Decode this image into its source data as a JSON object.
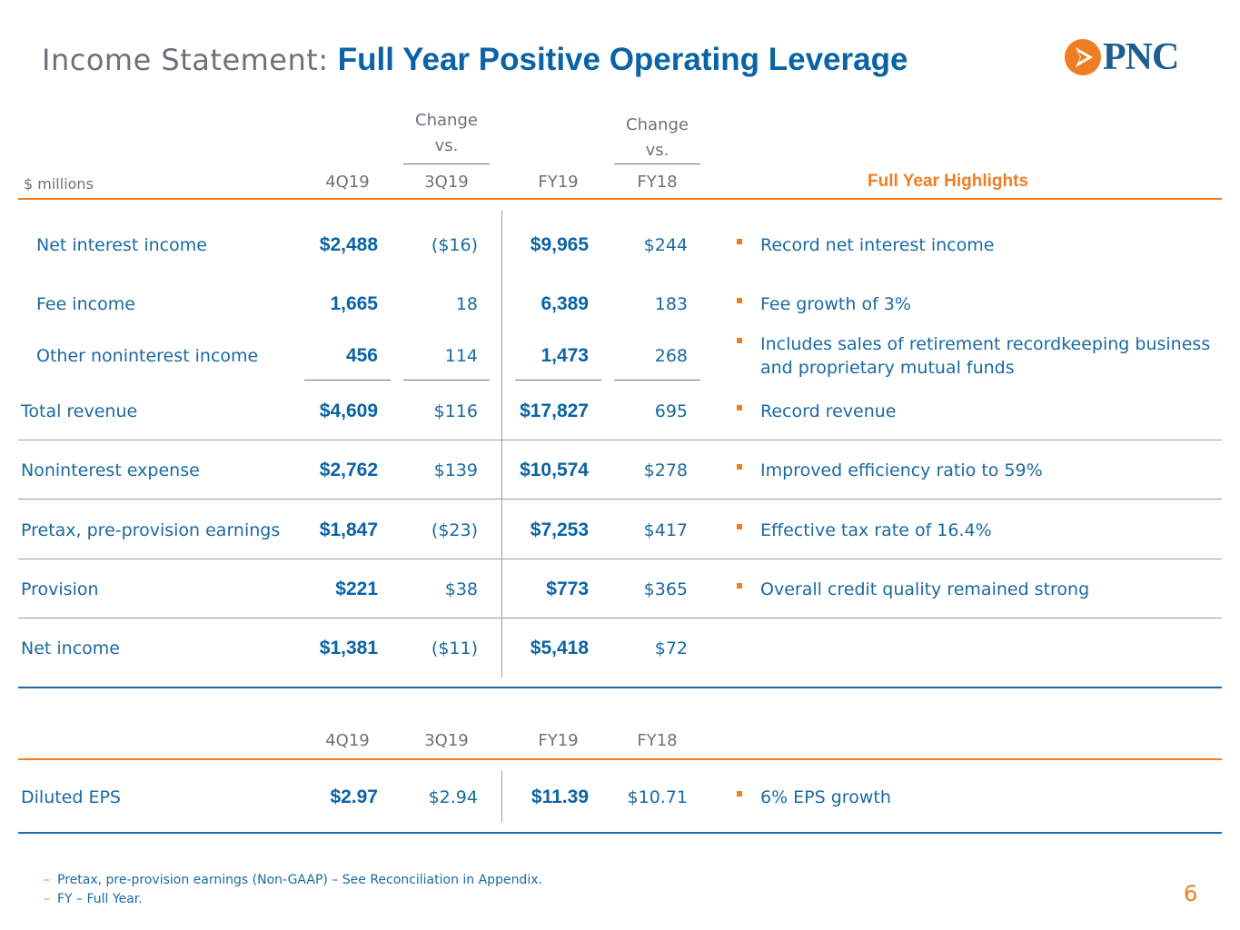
{
  "title": {
    "prefix": "Income Statement:",
    "main": "Full Year Positive Operating Leverage"
  },
  "logo": {
    "text": "PNC"
  },
  "header": {
    "units": "$ millions",
    "change_label_1": "Change",
    "vs_label_1": "vs.",
    "change_label_2": "Change",
    "vs_label_2": "vs.",
    "col_4q19": "4Q19",
    "col_3q19": "3Q19",
    "col_fy19": "FY19",
    "col_fy18": "FY18",
    "highlights": "Full Year Highlights"
  },
  "rows": [
    {
      "label": "Net interest income",
      "q4": "$2,488",
      "chg_q": "($16)",
      "fy": "$9,965",
      "chg_fy": "$244",
      "highlight": "Record net interest income"
    },
    {
      "label": "Fee income",
      "q4": "1,665",
      "chg_q": "18",
      "fy": "6,389",
      "chg_fy": "183",
      "highlight": "Fee growth of 3%"
    },
    {
      "label": "Other noninterest income",
      "q4": "456",
      "chg_q": "114",
      "fy": "1,473",
      "chg_fy": "268",
      "highlight": "Includes sales of retirement recordkeeping business",
      "highlight2": "and proprietary mutual funds"
    },
    {
      "label": "Total revenue",
      "q4": "$4,609",
      "chg_q": "$116",
      "fy": "$17,827",
      "chg_fy": "695",
      "highlight": "Record revenue"
    },
    {
      "label": "Noninterest expense",
      "q4": "$2,762",
      "chg_q": "$139",
      "fy": "$10,574",
      "chg_fy": "$278",
      "highlight": "Improved efficiency ratio to 59%"
    },
    {
      "label": "Pretax, pre-provision earnings",
      "q4": "$1,847",
      "chg_q": "($23)",
      "fy": "$7,253",
      "chg_fy": "$417",
      "highlight": "Effective tax rate of 16.4%"
    },
    {
      "label": "Provision",
      "q4": "$221",
      "chg_q": "$38",
      "fy": "$773",
      "chg_fy": "$365",
      "highlight": "Overall credit quality remained strong"
    },
    {
      "label": "Net income",
      "q4": "$1,381",
      "chg_q": "($11)",
      "fy": "$5,418",
      "chg_fy": "$72",
      "highlight": ""
    }
  ],
  "eps_header": {
    "col_4q19": "4Q19",
    "col_3q19": "3Q19",
    "col_fy19": "FY19",
    "col_fy18": "FY18"
  },
  "eps": {
    "label": "Diluted EPS",
    "q4": "$2.97",
    "q3": "$2.94",
    "fy19": "$11.39",
    "fy18": "$10.71",
    "highlight": "6% EPS growth"
  },
  "footnotes": [
    "Pretax, pre-provision earnings (Non-GAAP) – See Reconciliation in Appendix.",
    "FY – Full Year."
  ],
  "page_number": "6",
  "colors": {
    "accent": "#ef7d22",
    "brand_blue": "#0a63a4",
    "text_blue": "#1a6aa0",
    "grey": "#6d7278"
  }
}
